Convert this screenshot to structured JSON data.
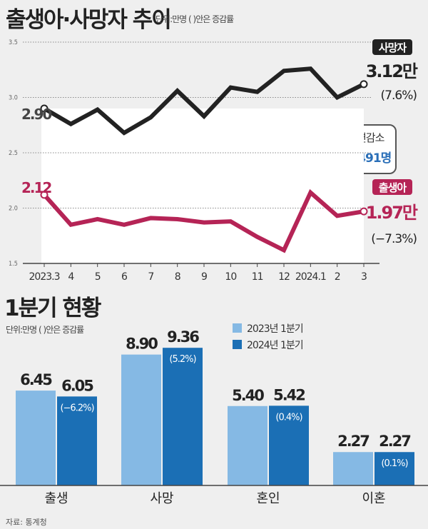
{
  "line_chart_title": "출생아·사망자 추이",
  "line_chart_unit": "단위:만명 ( )안은 증감률",
  "bar_chart_title": "1분기 현황",
  "bar_chart_unit": "단위:만명 ( )안은  증감률",
  "source": "자료: 통계청",
  "callout": {
    "title": "인구자연감소",
    "value": "−1만1491명"
  },
  "chart_data": [
    {
      "type": "line",
      "ylim": [
        1.5,
        3.5
      ],
      "yticks": [
        "3.5",
        "3.0",
        "2.5",
        "2.0",
        "1.5"
      ],
      "grid": true,
      "categories": [
        "2023.3",
        "4",
        "5",
        "6",
        "7",
        "8",
        "9",
        "10",
        "11",
        "12",
        "2024.1",
        "2",
        "3"
      ],
      "series": [
        {
          "name": "사망자",
          "color": "#222222",
          "values": [
            2.9,
            2.76,
            2.89,
            2.68,
            2.82,
            3.06,
            2.83,
            3.09,
            3.05,
            3.24,
            3.26,
            3.0,
            3.12
          ],
          "start_label": "2.90",
          "end_label": "3.12만",
          "end_change": "(7.6%)"
        },
        {
          "name": "출생아",
          "color": "#b52456",
          "values": [
            2.12,
            1.85,
            1.9,
            1.85,
            1.91,
            1.9,
            1.87,
            1.88,
            1.74,
            1.62,
            2.14,
            1.93,
            1.97
          ],
          "start_label": "2.12",
          "end_label": "1.97만",
          "end_change": "(−7.3%)"
        }
      ]
    },
    {
      "type": "bar",
      "categories": [
        "출생",
        "사망",
        "혼인",
        "이혼"
      ],
      "series": [
        {
          "name": "2023년 1분기",
          "color": "#85b9e4",
          "values": [
            6.45,
            8.9,
            5.4,
            2.27
          ],
          "labels": [
            "6.45",
            "8.90",
            "5.40",
            "2.27"
          ]
        },
        {
          "name": "2024년 1분기",
          "color": "#1b6fb5",
          "values": [
            6.05,
            9.36,
            5.42,
            2.27
          ],
          "labels": [
            "6.05",
            "9.36",
            "5.42",
            "2.27"
          ],
          "changes": [
            "(−6.2%)",
            "(5.2%)",
            "(0.4%)",
            "(0.1%)"
          ]
        }
      ],
      "legend": "top-right"
    }
  ]
}
